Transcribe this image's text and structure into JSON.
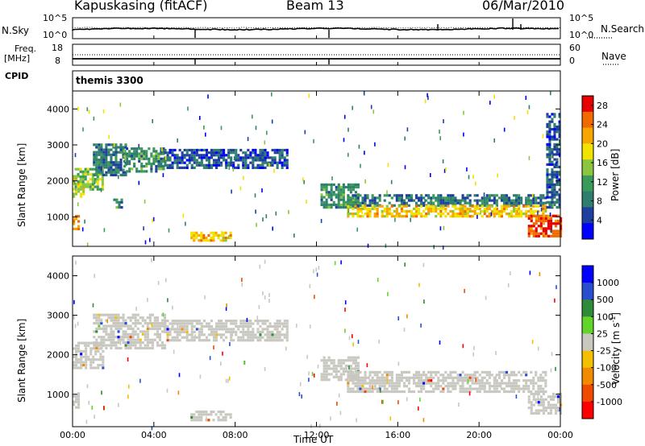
{
  "header": {
    "station": "Kapuskasing (fitACF)",
    "beam": "Beam 13",
    "date": "06/Mar/2010"
  },
  "top_panels": {
    "nsky_label": "N.Sky",
    "nsky_ticks": [
      "10^5",
      "10^0"
    ],
    "nsearch_label": "N.Search",
    "nsearch_ticks": [
      "10^5",
      "10^0"
    ],
    "freq_label": "Freq.",
    "freq_unit": "[MHz]",
    "freq_ticks": [
      "18",
      "8"
    ],
    "nave_label": "Nave",
    "nave_ticks": [
      "60",
      "0"
    ],
    "cpid_label": "CPID",
    "cpid_value": "themis 3300"
  },
  "colors": {
    "power_scale": [
      "#0000ff",
      "#1f3fa0",
      "#2e7d6e",
      "#3a9a5a",
      "#8cc63f",
      "#f2e200",
      "#f7a600",
      "#f06a00",
      "#e60000"
    ],
    "velocity_scale": [
      "#0000ff",
      "#2a4ed0",
      "#2f8a3a",
      "#62d42a",
      "#c8c8c0",
      "#f2c000",
      "#f28a00",
      "#f04a00",
      "#ff0000"
    ],
    "ground_scatter": "#c8c8c0"
  },
  "chart_data": [
    {
      "type": "heatmap",
      "quantity": "Power",
      "xlabel": "Time UT",
      "ylabel": "Slant Range [km]",
      "x_ticks": [
        "00:00",
        "04:00",
        "08:00",
        "12:00",
        "16:00",
        "20:00",
        "00:00"
      ],
      "x_range_hours": [
        0,
        24
      ],
      "y_ticks": [
        "1000",
        "2000",
        "3000",
        "4000"
      ],
      "y_range": [
        180,
        4500
      ],
      "colorbar_label": "Power [dB]",
      "colorbar_ticks": [
        "4",
        "8",
        "12",
        "16",
        "20",
        "24",
        "28"
      ],
      "colorbar_range": [
        0,
        30
      ],
      "bands": [
        {
          "t": [
            0.0,
            0.5
          ],
          "r": [
            1600,
            2200
          ],
          "level": 18
        },
        {
          "t": [
            0.1,
            1.5
          ],
          "r": [
            1800,
            2400
          ],
          "level": 14
        },
        {
          "t": [
            1.0,
            2.6
          ],
          "r": [
            2200,
            3100
          ],
          "level": 8
        },
        {
          "t": [
            2.5,
            4.5
          ],
          "r": [
            2300,
            3000
          ],
          "level": 10
        },
        {
          "t": [
            4.5,
            10.5
          ],
          "r": [
            2400,
            2900
          ],
          "level": 6
        },
        {
          "t": [
            5.8,
            7.8
          ],
          "r": [
            380,
            620
          ],
          "level": 20
        },
        {
          "t": [
            0.0,
            0.3
          ],
          "r": [
            700,
            1100
          ],
          "level": 24
        },
        {
          "t": [
            2.0,
            2.4
          ],
          "r": [
            1300,
            1600
          ],
          "level": 10
        },
        {
          "t": [
            12.2,
            14.0
          ],
          "r": [
            1300,
            2000
          ],
          "level": 10
        },
        {
          "t": [
            13.5,
            23.3
          ],
          "r": [
            1350,
            1700
          ],
          "level": 8
        },
        {
          "t": [
            13.5,
            23.3
          ],
          "r": [
            1050,
            1350
          ],
          "level": 20
        },
        {
          "t": [
            22.4,
            24.0
          ],
          "r": [
            500,
            1100
          ],
          "level": 26
        },
        {
          "t": [
            23.3,
            24.0
          ],
          "r": [
            1300,
            3900
          ],
          "level": 6
        }
      ]
    },
    {
      "type": "heatmap",
      "quantity": "Velocity",
      "xlabel": "Time UT",
      "ylabel": "Slant Range [km]",
      "x_ticks": [
        "00:00",
        "04:00",
        "08:00",
        "12:00",
        "16:00",
        "20:00",
        "00:00"
      ],
      "x_range_hours": [
        0,
        24
      ],
      "y_ticks": [
        "1000",
        "2000",
        "3000",
        "4000"
      ],
      "y_range": [
        180,
        4500
      ],
      "colorbar_label": "Velocity [m s",
      "colorbar_label_sup": "-1",
      "colorbar_label_end": "]",
      "colorbar_ticks": [
        "1000",
        "500",
        "100",
        "25",
        "-25",
        "-100",
        "-500",
        "-1000"
      ],
      "bands": [
        {
          "t": [
            0.0,
            1.5
          ],
          "r": [
            1700,
            2400
          ]
        },
        {
          "t": [
            1.0,
            4.5
          ],
          "r": [
            2200,
            3100
          ]
        },
        {
          "t": [
            4.5,
            10.5
          ],
          "r": [
            2400,
            2900
          ]
        },
        {
          "t": [
            5.8,
            7.8
          ],
          "r": [
            380,
            620
          ]
        },
        {
          "t": [
            12.2,
            14.0
          ],
          "r": [
            1400,
            2000
          ]
        },
        {
          "t": [
            13.5,
            23.3
          ],
          "r": [
            1100,
            1650
          ]
        },
        {
          "t": [
            22.4,
            24.0
          ],
          "r": [
            550,
            1100
          ]
        },
        {
          "t": [
            0.0,
            0.3
          ],
          "r": [
            700,
            1100
          ]
        }
      ]
    }
  ]
}
